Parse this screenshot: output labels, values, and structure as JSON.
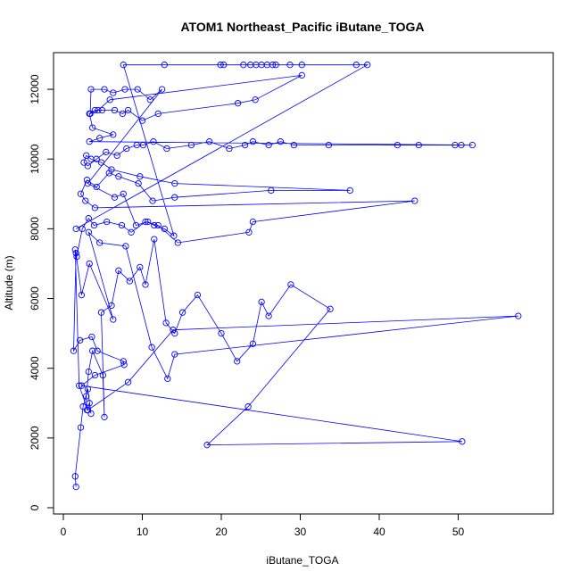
{
  "chart_data": {
    "type": "line",
    "title": "ATOM1 Northeast_Pacific iButane_TOGA",
    "xlabel": "iButane_TOGA",
    "ylabel": "Altitude (m)",
    "xlim": [
      0,
      60
    ],
    "ylim": [
      0,
      13000
    ],
    "xticks": [
      0,
      10,
      20,
      30,
      40,
      50
    ],
    "yticks": [
      0,
      2000,
      4000,
      6000,
      8000,
      10000,
      12000
    ],
    "grid": false,
    "legend": "none",
    "series": [
      {
        "color": "#0000ff",
        "marker": "open-circle",
        "x": [
          1.6,
          1.5,
          2.2,
          2.5,
          3.1,
          3.5,
          3.3,
          3.0,
          2.9,
          3.2,
          3.7,
          5.0,
          5.2,
          4.8,
          6.1,
          7.0,
          8.4,
          9.7,
          10.4,
          11.5,
          13.0,
          14.1,
          15.1,
          17.0,
          20.0,
          22.0,
          24.0,
          25.1,
          26.0,
          28.8,
          33.8,
          23.4,
          18.2,
          50.5,
          2.3,
          4.0,
          7.7,
          7.6,
          4.3,
          3.6,
          2.1,
          1.3,
          1.6,
          2.3,
          3.3,
          6.3,
          3.2,
          4.6,
          7.9,
          11.2,
          13.2,
          14.1,
          57.6,
          13.9,
          8.2,
          3.1,
          2.0,
          1.5,
          1.7,
          2.4,
          3.2,
          3.9,
          5.5,
          7.4,
          8.6,
          10.4,
          12.0,
          14.5,
          23.5,
          24.0,
          44.5,
          4.0,
          2.8,
          2.2,
          3.0,
          4.2,
          5.8,
          7.0,
          9.5,
          11.3,
          14.1,
          26.3,
          36.3,
          14.1,
          9.7,
          6.1,
          4.8,
          3.5,
          2.9,
          2.6,
          3.1,
          4.2,
          5.4,
          6.8,
          8.0,
          9.3,
          10.1,
          11.4,
          13.1,
          16.2,
          18.5,
          21.0,
          23.0,
          24.0,
          26.0,
          27.5,
          29.2,
          33.6,
          42.3,
          45.0,
          49.6,
          50.4,
          51.8,
          3.3,
          4.6,
          6.3,
          3.7,
          3.3,
          4.0,
          4.9,
          6.5,
          7.5,
          8.2,
          10.0,
          12.0,
          22.1,
          24.3,
          30.2,
          5.9,
          4.4,
          3.4,
          3.5,
          5.2,
          6.3,
          7.8,
          9.4,
          11.0,
          12.5,
          3.1,
          6.5,
          7.6,
          9.2,
          10.7,
          11.5,
          12.8,
          14.0,
          7.6,
          12.8,
          19.9,
          20.3,
          22.8,
          23.7,
          24.4,
          25.1,
          25.8,
          26.5,
          26.9,
          28.7,
          30.2,
          37.1,
          38.5,
          1.6
        ],
        "y": [
          600,
          900,
          2300,
          2900,
          3400,
          2700,
          3000,
          2800,
          3200,
          3900,
          4500,
          3800,
          2600,
          5600,
          5800,
          6800,
          6500,
          6900,
          6400,
          7700,
          5300,
          5000,
          5600,
          6100,
          5000,
          4200,
          4700,
          5900,
          5500,
          6400,
          5700,
          2900,
          1800,
          1900,
          3500,
          3800,
          4100,
          4200,
          4500,
          4900,
          4800,
          4500,
          7300,
          6100,
          7000,
          5400,
          7900,
          7600,
          7500,
          4600,
          3700,
          4400,
          5500,
          5100,
          3600,
          2800,
          3500,
          7400,
          7200,
          8000,
          8300,
          8100,
          8200,
          8100,
          7900,
          8200,
          8100,
          7600,
          7900,
          8200,
          8800,
          8600,
          8800,
          9000,
          9400,
          9200,
          9600,
          9500,
          9300,
          8800,
          8900,
          9100,
          9100,
          9300,
          9500,
          9700,
          9900,
          10000,
          10100,
          9900,
          9800,
          10000,
          10200,
          10100,
          10300,
          10400,
          10400,
          10500,
          10300,
          10400,
          10500,
          10300,
          10400,
          10500,
          10400,
          10500,
          10400,
          10400,
          10400,
          10400,
          10400,
          10400,
          10400,
          10500,
          10600,
          10700,
          10900,
          11300,
          11400,
          11400,
          11400,
          11300,
          11400,
          11100,
          11300,
          11600,
          11700,
          12400,
          11700,
          11400,
          11300,
          12000,
          12000,
          11900,
          12000,
          12000,
          11700,
          12000,
          9300,
          8900,
          9000,
          8100,
          8200,
          8100,
          8000,
          7800,
          12700,
          12700,
          12700,
          12700,
          12700,
          12700,
          12700,
          12700,
          12700,
          12700,
          12700,
          12700,
          12700,
          12700,
          12700,
          8000
        ]
      }
    ]
  }
}
